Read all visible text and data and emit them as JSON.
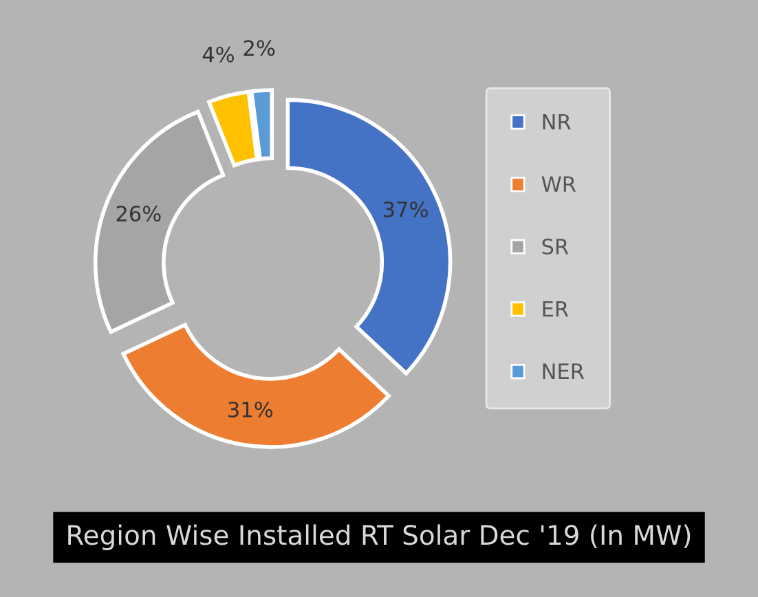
{
  "chart_data": {
    "type": "donut",
    "title": "Region Wise Installed RT Solar Dec '19 (In MW)",
    "categories": [
      "NR",
      "WR",
      "SR",
      "ER",
      "NER"
    ],
    "values": [
      37,
      31,
      26,
      4,
      2
    ],
    "value_labels": [
      "37%",
      "31%",
      "26%",
      "4%",
      "2%"
    ],
    "colors": [
      "#4472c4",
      "#ed7d31",
      "#a5a5a5",
      "#ffc000",
      "#5b9bd5"
    ],
    "legend": "right"
  }
}
